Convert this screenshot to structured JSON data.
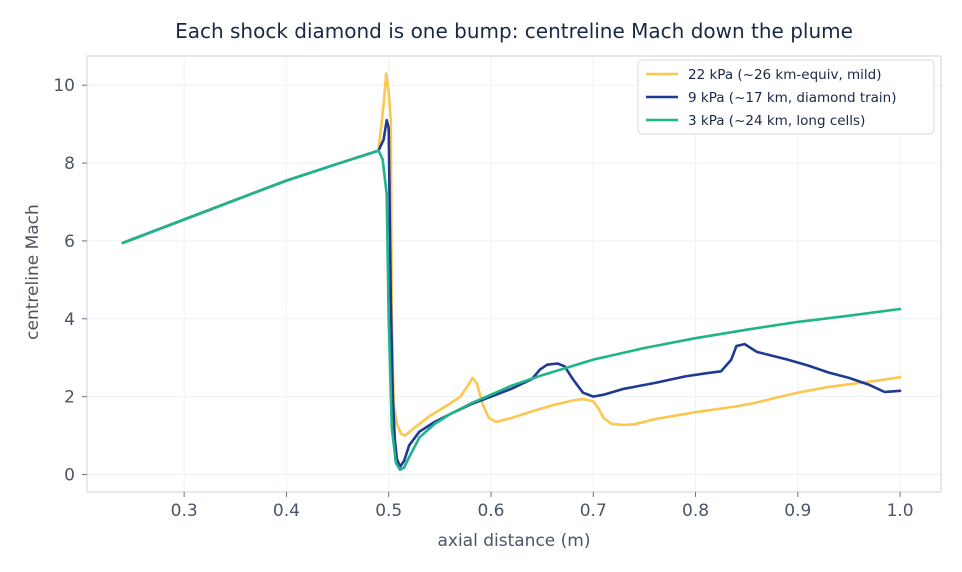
{
  "chart_data": {
    "type": "line",
    "title": "Each shock diamond is one bump: centreline Mach down the plume",
    "xlabel": "axial distance (m)",
    "ylabel": "centreline Mach",
    "xlim": [
      0.205,
      1.04
    ],
    "ylim": [
      -0.45,
      10.75
    ],
    "xticks": [
      0.3,
      0.4,
      0.5,
      0.6,
      0.7,
      0.8,
      0.9,
      1.0
    ],
    "xtick_labels": [
      "0.3",
      "0.4",
      "0.5",
      "0.6",
      "0.7",
      "0.8",
      "0.9",
      "1.0"
    ],
    "yticks": [
      0,
      2,
      4,
      6,
      8,
      10
    ],
    "ytick_labels": [
      "0",
      "2",
      "4",
      "6",
      "8",
      "10"
    ],
    "grid": true,
    "legend_position": "top-right",
    "series": [
      {
        "name": "22 kPa (~26 km-equiv, mild)",
        "color": "#fcc74f",
        "points": [
          [
            0.24,
            5.95
          ],
          [
            0.3,
            6.55
          ],
          [
            0.35,
            7.05
          ],
          [
            0.4,
            7.55
          ],
          [
            0.45,
            7.98
          ],
          [
            0.49,
            8.32
          ],
          [
            0.495,
            9.5
          ],
          [
            0.4975,
            10.3
          ],
          [
            0.5,
            9.8
          ],
          [
            0.502,
            9.1
          ],
          [
            0.503,
            4.0
          ],
          [
            0.505,
            1.8
          ],
          [
            0.508,
            1.3
          ],
          [
            0.512,
            1.05
          ],
          [
            0.516,
            1.0
          ],
          [
            0.525,
            1.2
          ],
          [
            0.54,
            1.5
          ],
          [
            0.56,
            1.82
          ],
          [
            0.57,
            2.0
          ],
          [
            0.578,
            2.3
          ],
          [
            0.582,
            2.48
          ],
          [
            0.586,
            2.35
          ],
          [
            0.592,
            1.8
          ],
          [
            0.598,
            1.45
          ],
          [
            0.605,
            1.35
          ],
          [
            0.62,
            1.45
          ],
          [
            0.64,
            1.62
          ],
          [
            0.66,
            1.78
          ],
          [
            0.68,
            1.9
          ],
          [
            0.69,
            1.94
          ],
          [
            0.7,
            1.88
          ],
          [
            0.705,
            1.7
          ],
          [
            0.71,
            1.45
          ],
          [
            0.718,
            1.3
          ],
          [
            0.73,
            1.27
          ],
          [
            0.74,
            1.29
          ],
          [
            0.76,
            1.42
          ],
          [
            0.8,
            1.6
          ],
          [
            0.84,
            1.75
          ],
          [
            0.86,
            1.85
          ],
          [
            0.88,
            1.98
          ],
          [
            0.9,
            2.1
          ],
          [
            0.93,
            2.25
          ],
          [
            0.96,
            2.35
          ],
          [
            0.98,
            2.42
          ],
          [
            1.0,
            2.5
          ]
        ]
      },
      {
        "name": "9 kPa (~17 km, diamond train)",
        "color": "#1f3a93",
        "points": [
          [
            0.24,
            5.95
          ],
          [
            0.3,
            6.55
          ],
          [
            0.35,
            7.05
          ],
          [
            0.4,
            7.55
          ],
          [
            0.45,
            7.98
          ],
          [
            0.49,
            8.32
          ],
          [
            0.495,
            8.6
          ],
          [
            0.498,
            9.1
          ],
          [
            0.5,
            8.9
          ],
          [
            0.502,
            4.5
          ],
          [
            0.504,
            2.0
          ],
          [
            0.506,
            0.9
          ],
          [
            0.508,
            0.4
          ],
          [
            0.511,
            0.2
          ],
          [
            0.515,
            0.35
          ],
          [
            0.52,
            0.75
          ],
          [
            0.53,
            1.1
          ],
          [
            0.545,
            1.35
          ],
          [
            0.56,
            1.55
          ],
          [
            0.58,
            1.8
          ],
          [
            0.6,
            2.0
          ],
          [
            0.62,
            2.2
          ],
          [
            0.64,
            2.45
          ],
          [
            0.648,
            2.7
          ],
          [
            0.655,
            2.82
          ],
          [
            0.665,
            2.85
          ],
          [
            0.672,
            2.78
          ],
          [
            0.68,
            2.45
          ],
          [
            0.69,
            2.1
          ],
          [
            0.7,
            2.0
          ],
          [
            0.71,
            2.05
          ],
          [
            0.73,
            2.2
          ],
          [
            0.76,
            2.35
          ],
          [
            0.79,
            2.52
          ],
          [
            0.81,
            2.6
          ],
          [
            0.825,
            2.65
          ],
          [
            0.835,
            2.95
          ],
          [
            0.84,
            3.3
          ],
          [
            0.848,
            3.35
          ],
          [
            0.86,
            3.15
          ],
          [
            0.875,
            3.05
          ],
          [
            0.89,
            2.95
          ],
          [
            0.91,
            2.8
          ],
          [
            0.93,
            2.62
          ],
          [
            0.95,
            2.48
          ],
          [
            0.97,
            2.3
          ],
          [
            0.985,
            2.12
          ],
          [
            1.0,
            2.15
          ]
        ]
      },
      {
        "name": "3 kPa (~24 km, long cells)",
        "color": "#1fb589",
        "points": [
          [
            0.24,
            5.95
          ],
          [
            0.3,
            6.55
          ],
          [
            0.35,
            7.05
          ],
          [
            0.4,
            7.55
          ],
          [
            0.45,
            7.98
          ],
          [
            0.49,
            8.32
          ],
          [
            0.494,
            8.1
          ],
          [
            0.498,
            7.2
          ],
          [
            0.5,
            4.0
          ],
          [
            0.503,
            1.2
          ],
          [
            0.507,
            0.3
          ],
          [
            0.511,
            0.12
          ],
          [
            0.515,
            0.18
          ],
          [
            0.52,
            0.45
          ],
          [
            0.53,
            0.95
          ],
          [
            0.545,
            1.3
          ],
          [
            0.56,
            1.55
          ],
          [
            0.58,
            1.82
          ],
          [
            0.6,
            2.05
          ],
          [
            0.62,
            2.28
          ],
          [
            0.65,
            2.55
          ],
          [
            0.7,
            2.95
          ],
          [
            0.75,
            3.25
          ],
          [
            0.8,
            3.5
          ],
          [
            0.85,
            3.72
          ],
          [
            0.9,
            3.92
          ],
          [
            0.95,
            4.08
          ],
          [
            1.0,
            4.25
          ]
        ]
      }
    ]
  }
}
